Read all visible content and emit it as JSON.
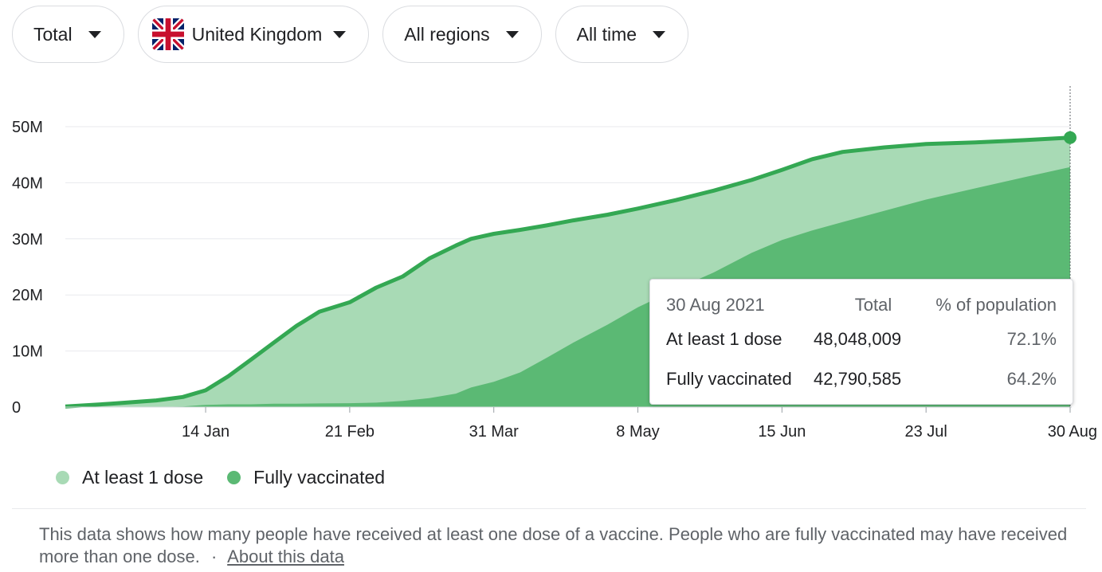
{
  "filters": {
    "type": "Total",
    "country": "United Kingdom",
    "region": "All regions",
    "period": "All time"
  },
  "chart_data": {
    "type": "area",
    "yticks": [
      "0",
      "10M",
      "20M",
      "30M",
      "40M",
      "50M"
    ],
    "ylim": [
      0,
      50000000
    ],
    "xtick_labels": [
      "14 Jan",
      "21 Feb",
      "31 Mar",
      "8 May",
      "15 Jun",
      "23 Jul",
      "30 Aug"
    ],
    "grid": true,
    "legend_position": "bottom-left",
    "x": [
      "2020-12-08",
      "2020-12-20",
      "2021-01-01",
      "2021-01-08",
      "2021-01-14",
      "2021-01-20",
      "2021-01-26",
      "2021-02-01",
      "2021-02-07",
      "2021-02-13",
      "2021-02-21",
      "2021-02-28",
      "2021-03-07",
      "2021-03-14",
      "2021-03-21",
      "2021-03-25",
      "2021-03-31",
      "2021-04-07",
      "2021-04-14",
      "2021-04-21",
      "2021-04-30",
      "2021-05-08",
      "2021-05-18",
      "2021-05-28",
      "2021-06-07",
      "2021-06-15",
      "2021-06-23",
      "2021-07-01",
      "2021-07-12",
      "2021-07-23",
      "2021-08-05",
      "2021-08-18",
      "2021-08-30"
    ],
    "series": [
      {
        "name": "At least 1 dose",
        "color": "#a8dab5",
        "values": [
          0.1,
          0.6,
          1.2,
          1.8,
          3.0,
          5.5,
          8.5,
          11.5,
          14.5,
          17.0,
          18.7,
          21.3,
          23.3,
          26.5,
          28.8,
          30.0,
          30.9,
          31.6,
          32.4,
          33.3,
          34.3,
          35.4,
          36.9,
          38.6,
          40.5,
          42.3,
          44.2,
          45.5,
          46.3,
          46.9,
          47.2,
          47.6,
          48.05
        ]
      },
      {
        "name": "Fully vaccinated",
        "color": "#5bb974",
        "values": [
          0,
          0,
          0.02,
          0.1,
          0.4,
          0.5,
          0.5,
          0.6,
          0.6,
          0.65,
          0.7,
          0.8,
          1.1,
          1.6,
          2.4,
          3.5,
          4.5,
          6.2,
          8.8,
          11.5,
          14.7,
          17.8,
          21.0,
          24.0,
          27.5,
          29.8,
          31.5,
          33.0,
          35.0,
          37.0,
          39.0,
          41.0,
          42.79
        ]
      }
    ]
  },
  "legend": {
    "first": "At least 1 dose",
    "second": "Fully vaccinated"
  },
  "tooltip": {
    "date": "30 Aug 2021",
    "col_total": "Total",
    "col_pct": "% of population",
    "rows": [
      {
        "label": "At least 1 dose",
        "total": "48,048,009",
        "pct": "72.1%"
      },
      {
        "label": "Fully vaccinated",
        "total": "42,790,585",
        "pct": "64.2%"
      }
    ]
  },
  "footnote": {
    "text": "This data shows how many people have received at least one dose of a vaccine. People who are fully vaccinated may have received more than one dose.",
    "separator": "·",
    "link": "About this data"
  },
  "colors": {
    "line": "#34a853",
    "dose1_fill": "#a8dab5",
    "full_fill": "#5bb974",
    "grid": "#e8eaed"
  },
  "icons": {
    "flag": "uk-flag-icon",
    "dropdown": "caret-down-icon"
  }
}
